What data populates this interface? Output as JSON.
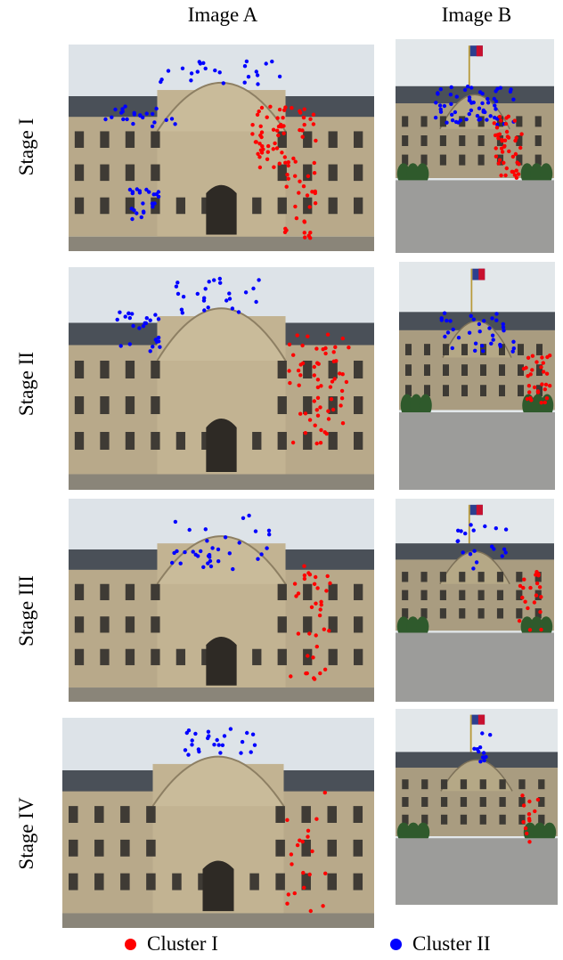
{
  "columns": {
    "a": "Image A",
    "b": "Image B"
  },
  "stages": [
    {
      "label": "Stage I"
    },
    {
      "label": "Stage II"
    },
    {
      "label": "Stage III"
    },
    {
      "label": "Stage IV"
    }
  ],
  "legend": {
    "cluster1": {
      "label": "Cluster I",
      "color": "#ff0000"
    },
    "cluster2": {
      "label": "Cluster II",
      "color": "#0000ff"
    }
  }
}
